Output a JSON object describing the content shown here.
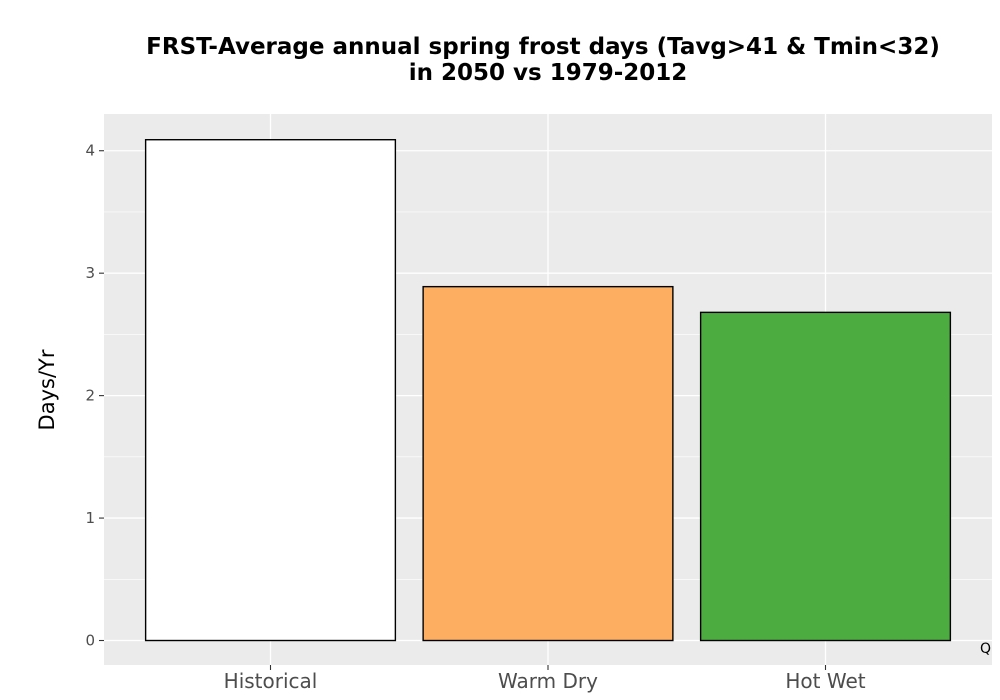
{
  "chart_data": {
    "type": "bar",
    "title_lines": [
      "FRST-Average annual spring frost days (Tavg>41 & Tmin<32)",
      "in 2050 vs 1979-2012"
    ],
    "xlabel": "",
    "ylabel": "Days/Yr",
    "categories": [
      "Historical",
      "Warm Dry",
      "Hot Wet"
    ],
    "values": [
      4.09,
      2.89,
      2.68
    ],
    "bar_colors": [
      "#ffffff",
      "#fdae61",
      "#4dac40"
    ],
    "bar_outline": "#000000",
    "ylim": [
      -0.2,
      4.3
    ],
    "yticks": [
      "0",
      "1",
      "2",
      "3",
      "4"
    ],
    "grid": true,
    "panel_background": "#ebebeb",
    "grid_color": "#ffffff",
    "legend": "none",
    "corner_note": "Q"
  }
}
